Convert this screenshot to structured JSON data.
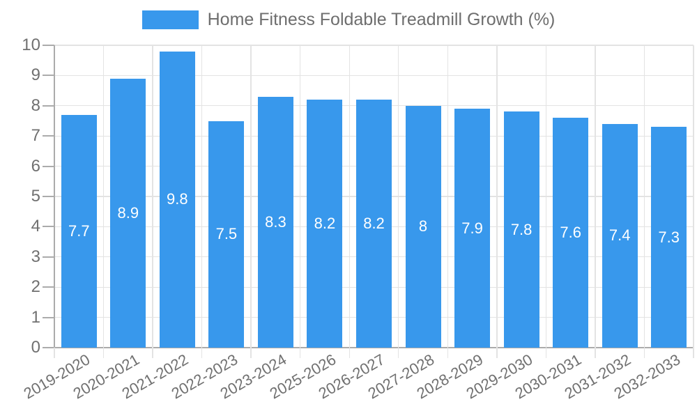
{
  "chart_data": {
    "type": "bar",
    "legend": "Home Fitness Foldable Treadmill Growth (%)",
    "categories": [
      "2019-2020",
      "2020-2021",
      "2021-2022",
      "2022-2023",
      "2023-2024",
      "2025-2026",
      "2026-2027",
      "2027-2028",
      "2028-2029",
      "2029-2030",
      "2030-2031",
      "2031-2032",
      "2032-2033"
    ],
    "values": [
      7.7,
      8.9,
      9.8,
      7.5,
      8.3,
      8.2,
      8.2,
      8,
      7.9,
      7.8,
      7.6,
      7.4,
      7.3
    ],
    "value_labels": [
      "7.7",
      "8.9",
      "9.8",
      "7.5",
      "8.3",
      "8.2",
      "8.2",
      "8",
      "7.9",
      "7.8",
      "7.6",
      "7.4",
      "7.3"
    ],
    "y_tick_labels": [
      "0",
      "1",
      "2",
      "3",
      "4",
      "5",
      "6",
      "7",
      "8",
      "9",
      "10"
    ],
    "ylim": [
      0,
      10
    ],
    "xlabel": "",
    "ylabel": "",
    "grid": true,
    "legend_position": "top",
    "colors": {
      "bar": "#3898EC",
      "grid_line": "#E3E3E3",
      "axis_line": "#ABABAB",
      "tick_text": "#707070",
      "legend_text": "#6E6E6E",
      "value_text": "#FFFFFF",
      "background": "#FFFFFF"
    }
  }
}
